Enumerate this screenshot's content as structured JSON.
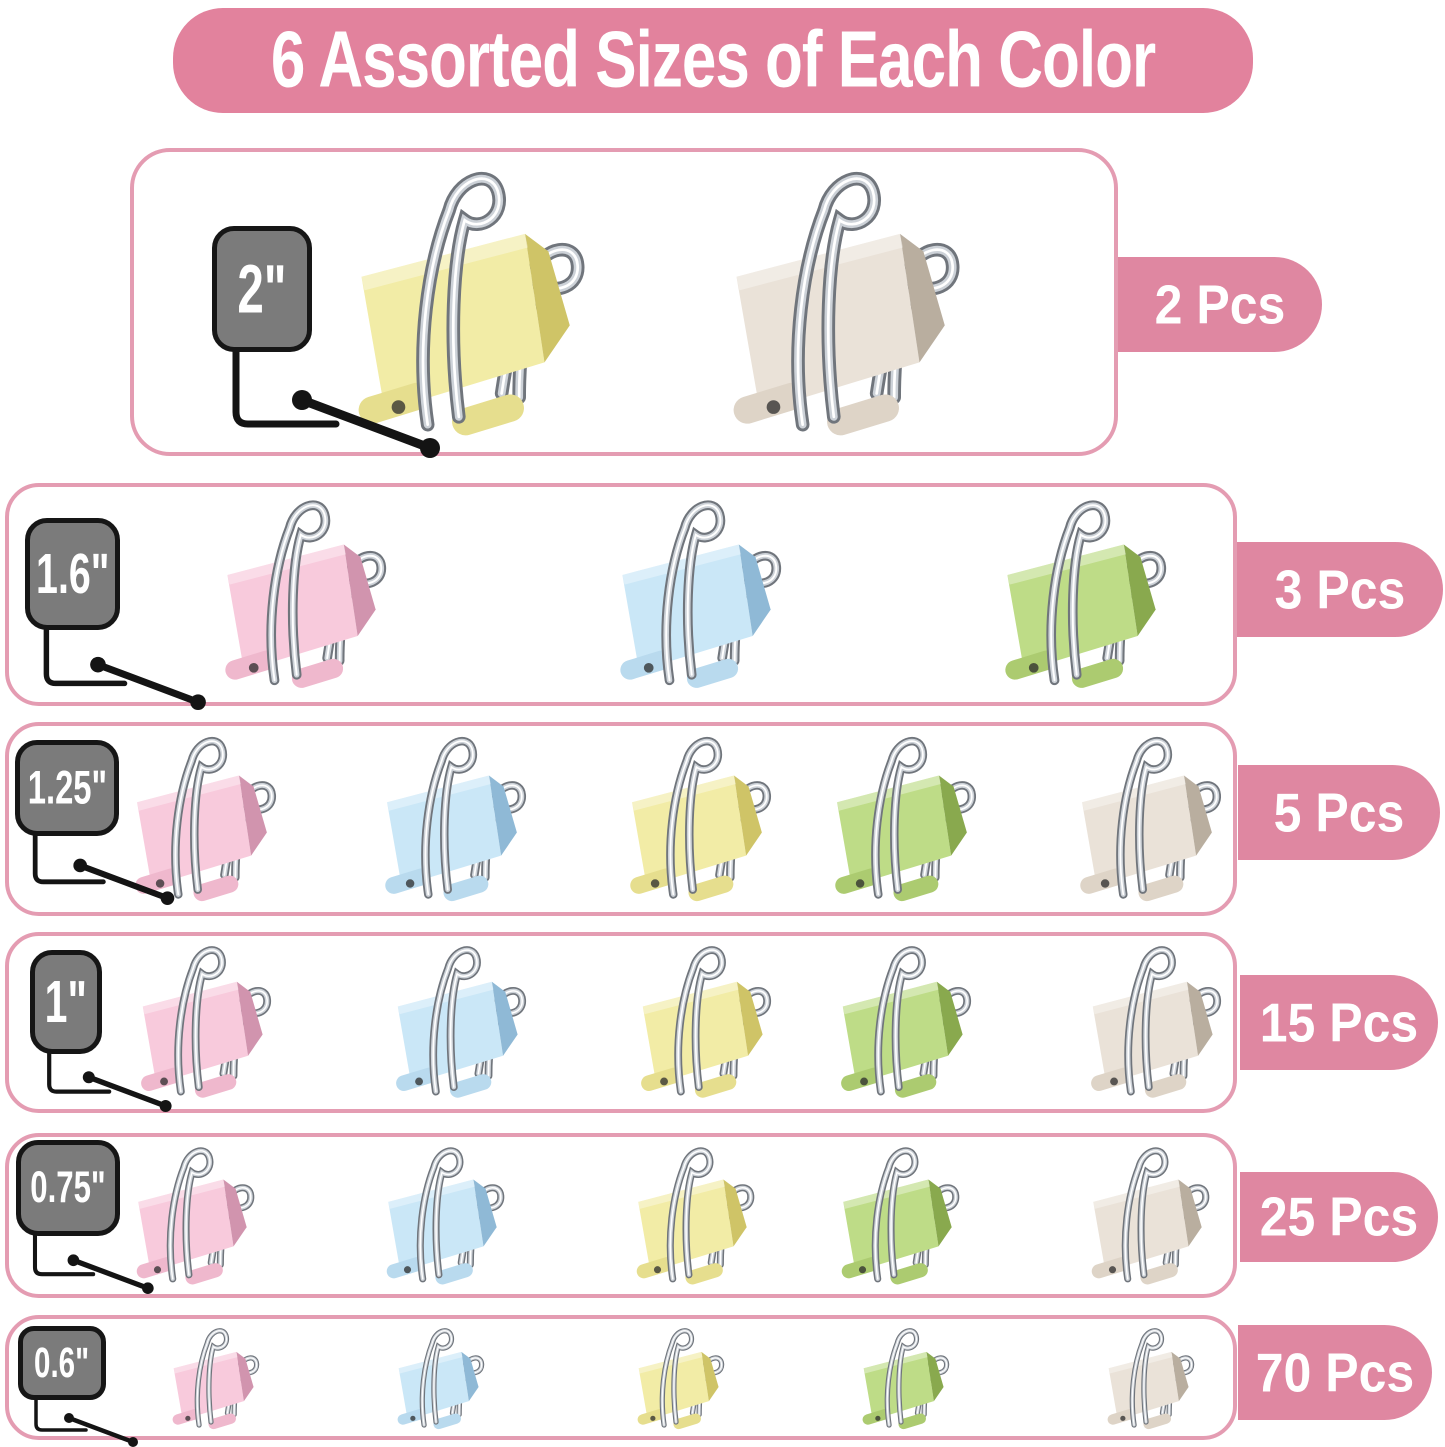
{
  "header": {
    "title": "6 Assorted Sizes of Each Color"
  },
  "rows": [
    {
      "size_label": "2\"",
      "count_label": "2 Pcs",
      "clips": [
        "yellow",
        "cream"
      ]
    },
    {
      "size_label": "1.6\"",
      "count_label": "3 Pcs",
      "clips": [
        "pink",
        "blue",
        "green"
      ]
    },
    {
      "size_label": "1.25\"",
      "count_label": "5 Pcs",
      "clips": [
        "pink",
        "blue",
        "yellow",
        "green",
        "cream"
      ]
    },
    {
      "size_label": "1\"",
      "count_label": "15 Pcs",
      "clips": [
        "pink",
        "blue",
        "yellow",
        "green",
        "cream"
      ]
    },
    {
      "size_label": "0.75\"",
      "count_label": "25 Pcs",
      "clips": [
        "pink",
        "blue",
        "yellow",
        "green",
        "cream"
      ]
    },
    {
      "size_label": "0.6\"",
      "count_label": "70 Pcs",
      "clips": [
        "pink",
        "blue",
        "yellow",
        "green",
        "cream"
      ]
    }
  ],
  "palette": {
    "banner_pink": "#e2829d",
    "badge_pink": "#df87a1",
    "card_border_pink": "#e49cb2",
    "tag_gray": "#7b7b7b",
    "tag_border_black": "#161616",
    "callout_black": "#141414",
    "text_white": "#ffffff",
    "wire_silver": "#cdd2d8",
    "wire_outline": "#70757c",
    "clip_colors": {
      "yellow": {
        "main": "#f2eca6",
        "side": "#cfc467",
        "roll": "#e6de8e"
      },
      "cream": {
        "main": "#eae2d8",
        "side": "#b9ae9f",
        "roll": "#ded4c7"
      },
      "pink": {
        "main": "#f8cadc",
        "side": "#d194ae",
        "roll": "#efb8cd"
      },
      "blue": {
        "main": "#cae7f7",
        "side": "#8fb9d6",
        "roll": "#b9daee"
      },
      "green": {
        "main": "#bedc87",
        "side": "#89a94e",
        "roll": "#accb70"
      }
    }
  }
}
